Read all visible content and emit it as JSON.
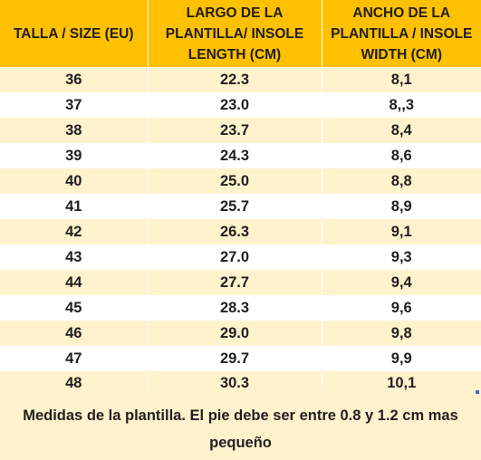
{
  "table": {
    "headers": [
      [
        "TALLA / SIZE (EU)"
      ],
      [
        "LARGO DE LA",
        "PLANTILLA/ INSOLE",
        "LENGTH (CM)"
      ],
      [
        "ANCHO DE LA",
        "PLANTILLA / INSOLE",
        "WIDTH (CM)"
      ]
    ],
    "rows": [
      [
        "36",
        "22.3",
        "8,1"
      ],
      [
        "37",
        "23.0",
        "8,,3"
      ],
      [
        "38",
        "23.7",
        "8,4"
      ],
      [
        "39",
        "24.3",
        "8,6"
      ],
      [
        "40",
        "25.0",
        "8,8"
      ],
      [
        "41",
        "25.7",
        "8,9"
      ],
      [
        "42",
        "26.3",
        "9,1"
      ],
      [
        "43",
        "27.0",
        "9,3"
      ],
      [
        "44",
        "27.7",
        "9,4"
      ],
      [
        "45",
        "28.3",
        "9,6"
      ],
      [
        "46",
        "29.0",
        "9,8"
      ],
      [
        "47",
        "29.7",
        "9,9"
      ],
      [
        "48",
        "30.3",
        "10,1"
      ]
    ]
  },
  "footer": {
    "note": "Medidas de la plantilla. El pie debe ser entre 0.8 y 1.2 cm mas pequeño"
  },
  "colors": {
    "header_bg": "#ffc000",
    "band_bg": "#fff2cc",
    "text": "#1f1f1f"
  }
}
